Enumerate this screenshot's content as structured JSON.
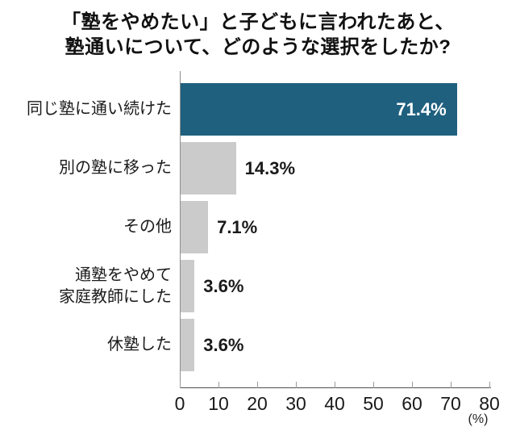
{
  "title": {
    "text": "「塾をやめたい」と子どもに言われたあと、\n塾通いについて、どのような選択をしたか?"
  },
  "chart_data": {
    "type": "bar",
    "orientation": "horizontal",
    "title": "「塾をやめたい」と子どもに言われたあと、塾通いについて、どのような選択をしたか?",
    "categories": [
      "同じ塾に通い続けた",
      "別の塾に移った",
      "その他",
      "通塾をやめて\n家庭教師にした",
      "休塾した"
    ],
    "values": [
      71.4,
      14.3,
      7.1,
      3.6,
      3.6
    ],
    "value_labels": [
      "71.4%",
      "14.3%",
      "7.1%",
      "3.6%",
      "3.6%"
    ],
    "highlight_index": 0,
    "x_ticks": [
      0,
      10,
      20,
      30,
      40,
      50,
      60,
      70,
      80
    ],
    "xlim": [
      0,
      80
    ],
    "x_unit_label": "(%)",
    "xlabel": "",
    "ylabel": "",
    "grid": false,
    "legend": "none",
    "colors": {
      "highlight_bar": "#1f607f",
      "bar": "#cbcbcb",
      "value_inside": "#ffffff",
      "value_outside": "#1a1a1a"
    }
  }
}
